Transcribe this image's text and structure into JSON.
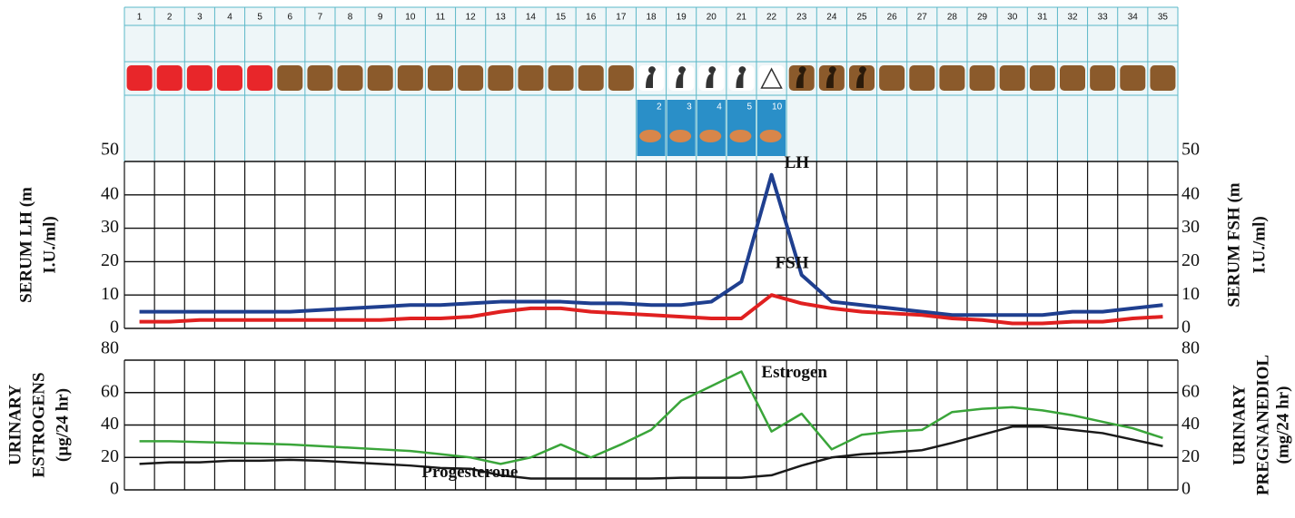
{
  "calendar": {
    "days": [
      1,
      2,
      3,
      4,
      5,
      6,
      7,
      8,
      9,
      10,
      11,
      12,
      13,
      14,
      15,
      16,
      17,
      18,
      19,
      20,
      21,
      22,
      23,
      24,
      25,
      26,
      27,
      28,
      29,
      30,
      31,
      32,
      33,
      34,
      35
    ],
    "image_labels": [
      "2",
      "3",
      "4",
      "5",
      "10"
    ]
  },
  "chart_data": [
    {
      "type": "line",
      "y_title": [
        "SERUM LH (m",
        "I.U./ml)"
      ],
      "y2_title": [
        "SERUM FSH (m",
        "I.U./ml)"
      ],
      "x": [
        1,
        2,
        3,
        4,
        5,
        6,
        7,
        8,
        9,
        10,
        11,
        12,
        13,
        14,
        15,
        16,
        17,
        18,
        19,
        20,
        21,
        22,
        23,
        24,
        25,
        26,
        27,
        28,
        29,
        30,
        31,
        32,
        33,
        34,
        35
      ],
      "xlim": [
        0.5,
        35.5
      ],
      "ylim": [
        0,
        50
      ],
      "yticks": [
        0,
        10,
        20,
        30,
        40,
        50
      ],
      "y2lim": [
        0,
        50
      ],
      "y2ticks": [
        0,
        10,
        20,
        30,
        40,
        50
      ],
      "grid": true,
      "series": [
        {
          "name": "LH",
          "color": "#1f3f8f",
          "values": [
            5,
            5,
            5,
            5,
            5,
            5,
            5.5,
            6,
            6.5,
            7,
            7,
            7.5,
            8,
            8,
            8,
            7.5,
            7.5,
            7,
            7,
            8,
            14,
            46,
            16,
            8,
            7,
            6,
            5,
            4,
            4,
            4,
            4,
            5,
            5,
            6,
            7
          ]
        },
        {
          "name": "FSH",
          "color": "#e02020",
          "axis": "y2",
          "values": [
            2,
            2,
            2.5,
            2.5,
            2.5,
            2.5,
            2.5,
            2.5,
            2.5,
            3,
            3,
            3.5,
            5,
            6,
            6,
            5,
            4.5,
            4,
            3.5,
            3,
            3,
            10,
            7.5,
            6,
            5,
            4.5,
            4,
            3,
            2.5,
            1.5,
            1.5,
            2,
            2,
            3,
            3.5
          ]
        }
      ]
    },
    {
      "type": "line",
      "y_title": [
        "URINARY",
        "ESTROGENS",
        "(µg/24 hr)"
      ],
      "y2_title": [
        "URINARY",
        "PREGNANEDIOL",
        "(mg/24 hr)"
      ],
      "x": [
        1,
        2,
        3,
        4,
        5,
        6,
        7,
        8,
        9,
        10,
        11,
        12,
        13,
        14,
        15,
        16,
        17,
        18,
        19,
        20,
        21,
        22,
        23,
        24,
        25,
        26,
        27,
        28,
        29,
        30,
        31,
        32,
        33,
        34,
        35
      ],
      "xlim": [
        0.5,
        35.5
      ],
      "ylim": [
        0,
        80
      ],
      "yticks": [
        0,
        20,
        40,
        60,
        80
      ],
      "y2lim": [
        0,
        80
      ],
      "y2ticks": [
        0,
        20,
        40,
        60,
        80
      ],
      "grid": true,
      "series": [
        {
          "name": "Estrogen",
          "color": "#3aa53a",
          "values": [
            30,
            30,
            29.5,
            29,
            28.5,
            28,
            27,
            26,
            25,
            24,
            22,
            20,
            16,
            20,
            28,
            20,
            28,
            37,
            55,
            64,
            73,
            36,
            47,
            25,
            34,
            36,
            37,
            48,
            50,
            51,
            49,
            46,
            42,
            38,
            32
          ]
        },
        {
          "name": "Progesterone",
          "color": "#1a1a1a",
          "axis": "y2",
          "values": [
            16,
            17,
            17,
            18,
            18,
            18.5,
            18,
            17,
            16,
            15,
            13.5,
            13,
            9,
            7,
            7,
            7,
            7,
            7,
            7.5,
            7.5,
            7.5,
            9,
            15,
            20,
            22,
            23,
            24.5,
            29,
            34,
            39,
            39,
            37,
            35,
            31,
            27
          ]
        }
      ]
    }
  ]
}
